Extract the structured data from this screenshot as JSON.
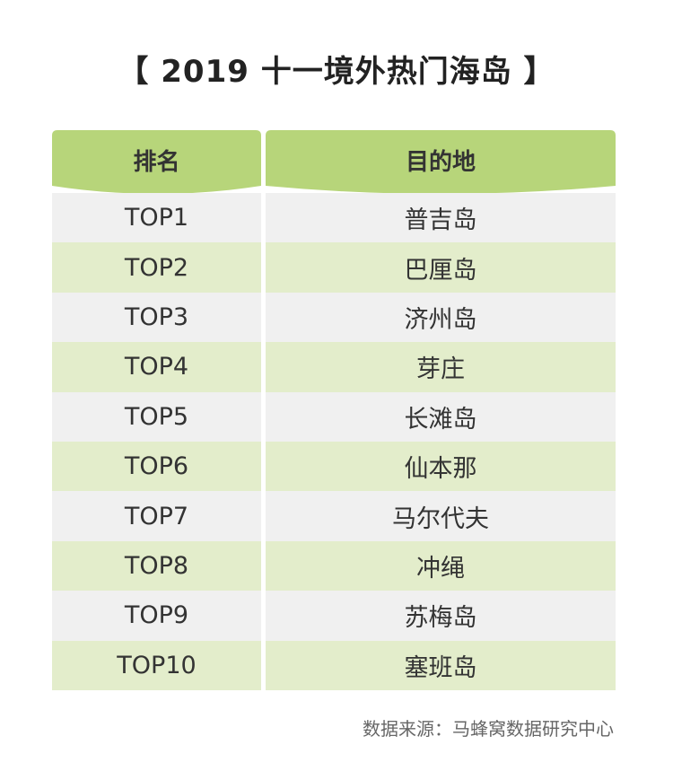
{
  "title": "【 2019 十一境外热门海岛 】",
  "header": {
    "rank_label": "排名",
    "destination_label": "目的地"
  },
  "rows": [
    {
      "rank": "TOP1",
      "destination": "普吉岛"
    },
    {
      "rank": "TOP2",
      "destination": "巴厘岛"
    },
    {
      "rank": "TOP3",
      "destination": "济州岛"
    },
    {
      "rank": "TOP4",
      "destination": "芽庄"
    },
    {
      "rank": "TOP5",
      "destination": "长滩岛"
    },
    {
      "rank": "TOP6",
      "destination": "仙本那"
    },
    {
      "rank": "TOP7",
      "destination": "马尔代夫"
    },
    {
      "rank": "TOP8",
      "destination": "冲绳"
    },
    {
      "rank": "TOP9",
      "destination": "苏梅岛"
    },
    {
      "rank": "TOP10",
      "destination": "塞班岛"
    }
  ],
  "source": "数据来源：马蜂窝数据研究中心",
  "colors": {
    "header": "#b7d57a",
    "row_odd": "#f0f0f0",
    "row_even": "#e3edcb"
  }
}
